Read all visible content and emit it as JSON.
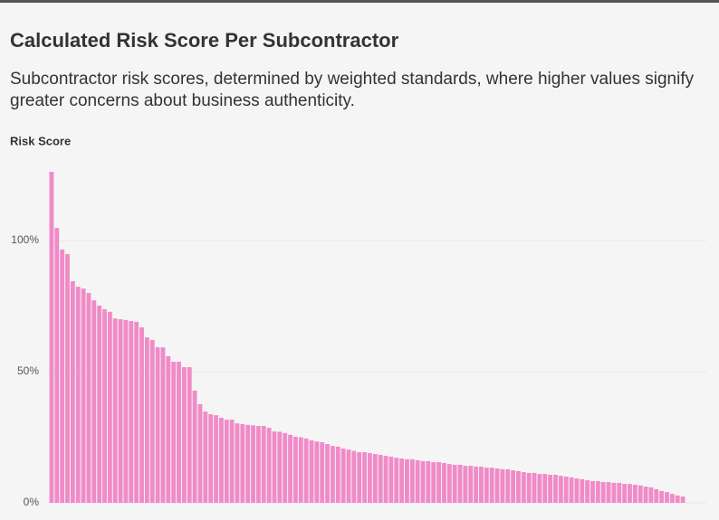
{
  "chart_data": {
    "type": "bar",
    "title": "Calculated Risk Score Per Subcontractor",
    "subtitle": "Subcontractor risk scores, determined by weighted standards, where higher values signify greater concerns about business authenticity.",
    "y_label": "Risk Score",
    "color": "#f08bc8",
    "ylim": [
      0,
      130
    ],
    "yticks": [
      {
        "value": 0,
        "label": "0%"
      },
      {
        "value": 50,
        "label": "50%"
      },
      {
        "value": 100,
        "label": "100%"
      }
    ],
    "grid": true,
    "values": [
      126.2,
      104.8,
      96.6,
      94.8,
      84.5,
      82.4,
      81.7,
      80,
      77.2,
      75.2,
      73.8,
      72.8,
      70.3,
      70,
      69.7,
      69.3,
      69,
      66.9,
      63.1,
      62.1,
      59.3,
      59.3,
      55.9,
      53.8,
      53.8,
      51.7,
      51.7,
      42.8,
      37.6,
      34.8,
      33.8,
      33.4,
      32.4,
      31.7,
      31.7,
      30.3,
      30,
      29.7,
      29.5,
      29.3,
      29.3,
      28.6,
      27.2,
      27.1,
      26.6,
      25.9,
      25.2,
      25,
      24.5,
      23.8,
      23.4,
      23.1,
      22.4,
      21.7,
      21.4,
      20.7,
      20.3,
      19.8,
      19.3,
      19.3,
      19,
      18.6,
      18.3,
      17.9,
      17.6,
      17.2,
      16.9,
      16.6,
      16.6,
      16.2,
      15.9,
      15.9,
      15.5,
      15.5,
      15.2,
      14.8,
      14.5,
      14.5,
      14.1,
      14.1,
      13.8,
      13.8,
      13.4,
      13.4,
      13.1,
      12.8,
      12.8,
      12.4,
      12.1,
      11.7,
      11.4,
      11.4,
      11,
      11,
      10.7,
      10.7,
      10.3,
      10,
      9.7,
      9.3,
      9,
      8.6,
      8.3,
      8.3,
      7.9,
      7.9,
      7.6,
      7.6,
      7.2,
      7.2,
      6.9,
      6.6,
      6.2,
      5.9,
      5.2,
      4.5,
      4.1,
      3.4,
      2.8,
      2.4
    ]
  }
}
